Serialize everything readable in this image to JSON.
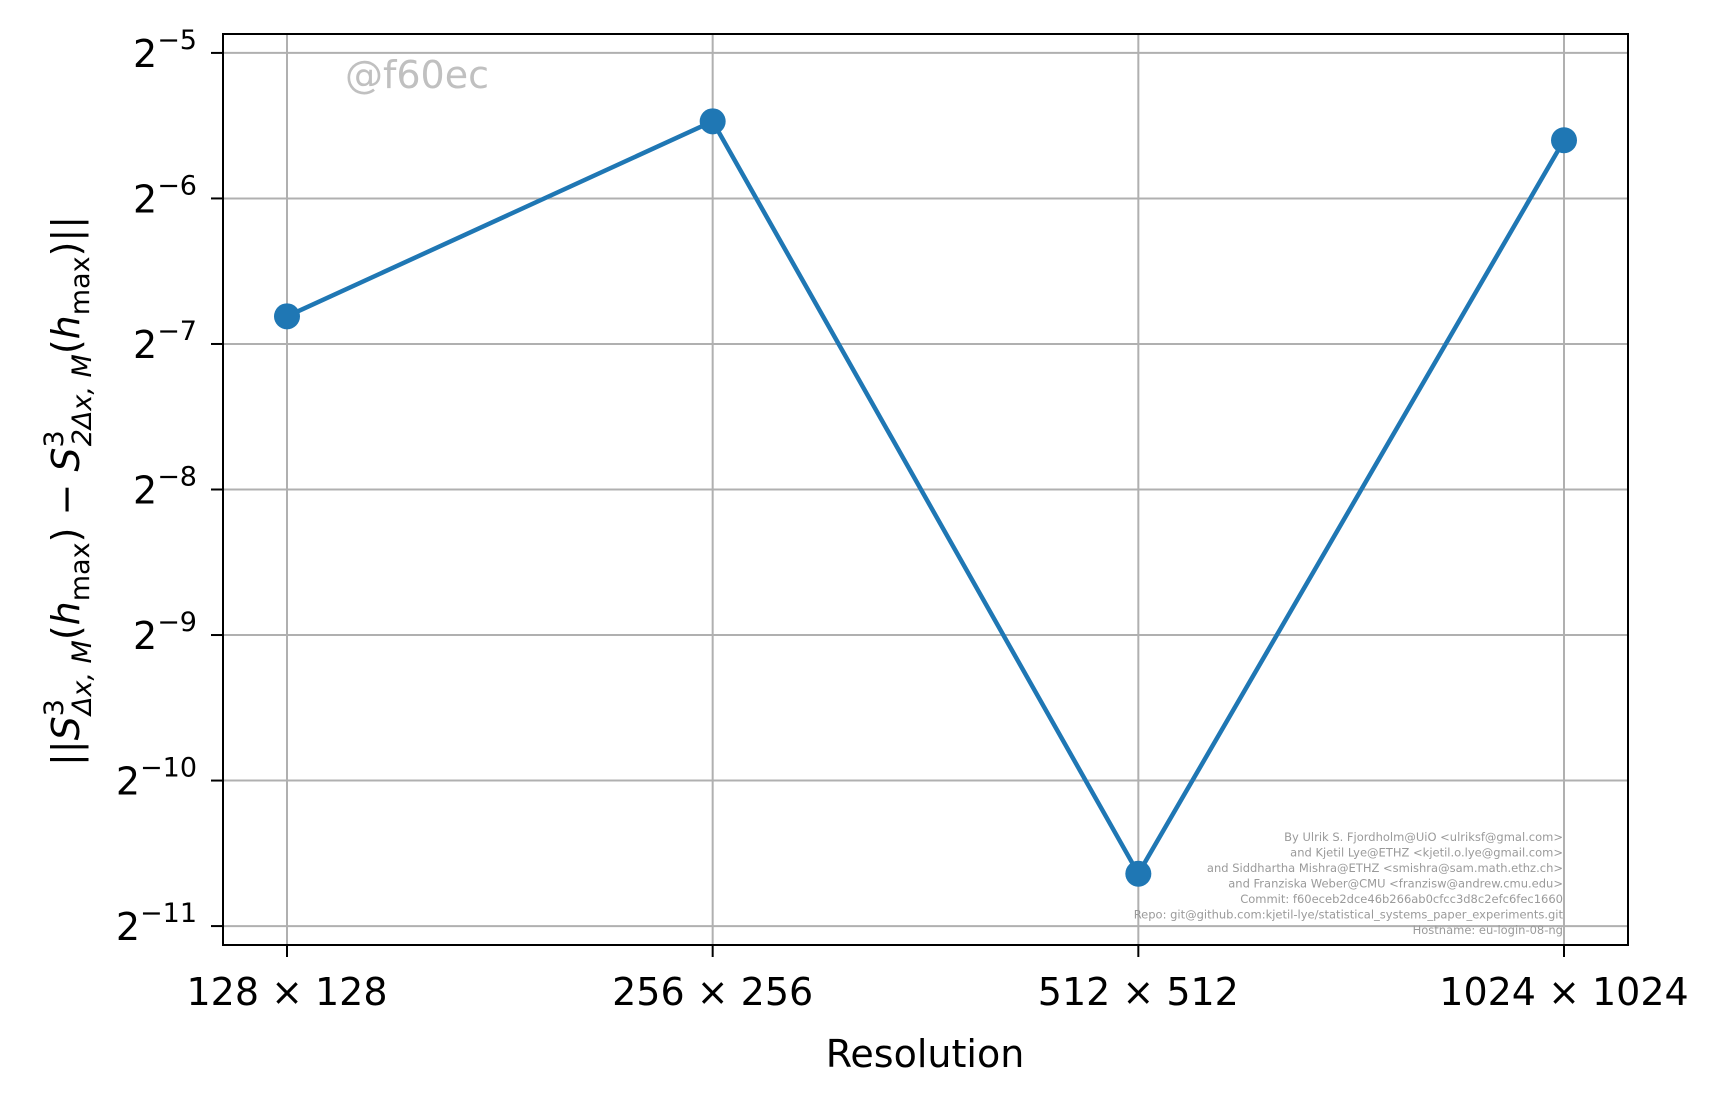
{
  "chart_data": {
    "type": "line",
    "categories": [
      "128 × 128",
      "256 × 256",
      "512 × 512",
      "1024 × 1024"
    ],
    "series": [
      {
        "values": [
          -6.81,
          -5.47,
          -10.64,
          -5.6
        ],
        "color": "#1f77b4"
      }
    ],
    "y_scale": "log2",
    "y_exponent_range": [
      -11.13,
      -4.87
    ],
    "y_ticks": [
      "-5",
      "-6",
      "-7",
      "-8",
      "-9",
      "-10",
      "-11"
    ],
    "y_tick_base": "2",
    "xlabel": "Resolution",
    "ylabel": {
      "pre": "||",
      "s1": "S",
      "s1_sup": "3",
      "s1_sub": "Δx, M",
      "h1": "h",
      "h1_sub": "max",
      "minus": "−",
      "s2": "S",
      "s2_sup": "3",
      "s2_sub": "2Δx, M",
      "h2": "h",
      "h2_sub": "max",
      "post": "||"
    },
    "grid": true,
    "marker": "circle",
    "watermark": "@f60ec",
    "credits": [
      "By Ulrik S. Fjordholm@UiO <ulriksf@gmal.com>",
      "and Kjetil Lye@ETHZ <kjetil.o.lye@gmail.com>",
      "and Siddhartha Mishra@ETHZ <smishra@sam.math.ethz.ch>",
      "and Franziska Weber@CMU <franzisw@andrew.cmu.edu>",
      "Commit: f60eceb2dce46b266ab0cfcc3d8c2efc6fec1660",
      "Repo: git@github.com:kjetil-lye/statistical_systems_paper_experiments.git",
      "Hostname: eu-login-08-ng"
    ]
  }
}
